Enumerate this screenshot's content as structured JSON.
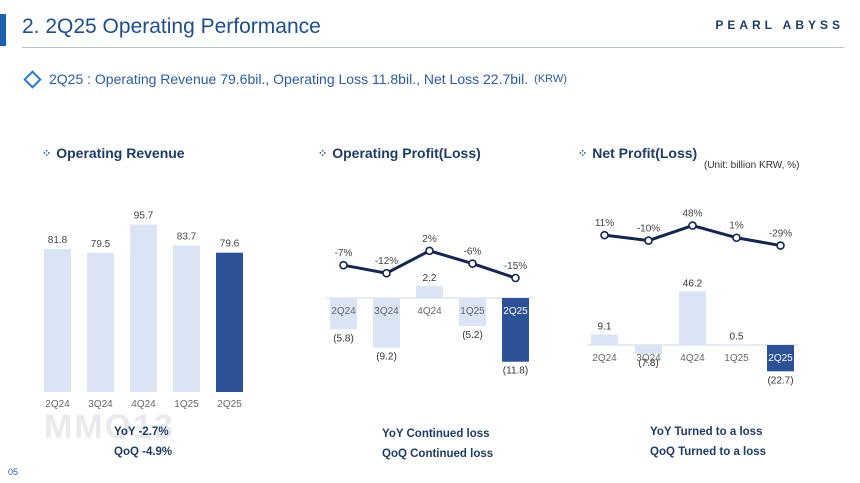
{
  "header": {
    "title": "2. 2Q25 Operating Performance",
    "brand": "PEARL ABYSS",
    "summary_main": "2Q25 : Operating Revenue 79.6bil., Operating Loss 11.8bil., Net Loss 22.7bil.",
    "summary_unit": "(KRW)"
  },
  "sections": {
    "revenue_title": "Operating Revenue",
    "op_title": "Operating Profit(Loss)",
    "net_title": "Net Profit(Loss)",
    "unit_note": "(Unit: billion KRW, %)"
  },
  "notes": {
    "revenue_yoy": "YoY  -2.7%",
    "revenue_qoq": "QoQ  -4.9%",
    "op_yoy": "YoY Continued loss",
    "op_qoq": "QoQ Continued loss",
    "net_yoy": "YoY Turned to a loss",
    "net_qoq": "QoQ Turned to a loss"
  },
  "page_number": "05",
  "watermark": "MMO13",
  "colors": {
    "bar_light": "#dbe4f4",
    "bar_highlight": "#2c5196",
    "line": "#13264d",
    "title_blue": "#1f4e8c"
  },
  "chart_data": [
    {
      "type": "bar",
      "title": "Operating Revenue",
      "categories": [
        "2Q24",
        "3Q24",
        "4Q24",
        "1Q25",
        "2Q25"
      ],
      "values": [
        81.8,
        79.5,
        95.7,
        83.7,
        79.6
      ],
      "labels": [
        "81.8",
        "79.5",
        "95.7",
        "83.7",
        "79.6"
      ],
      "highlight_index": 4
    },
    {
      "type": "bar",
      "title": "Operating Profit(Loss)",
      "categories": [
        "2Q24",
        "3Q24",
        "4Q24",
        "1Q25",
        "2Q25"
      ],
      "values": [
        -5.8,
        -9.2,
        2.2,
        -5.2,
        -11.8
      ],
      "labels": [
        "(5.8)",
        "(9.2)",
        "2.2",
        "(5.2)",
        "(11.8)"
      ],
      "margin_series": {
        "type": "line",
        "values": [
          -7,
          -12,
          2,
          -6,
          -15
        ],
        "labels": [
          "-7%",
          "-12%",
          "2%",
          "-6%",
          "-15%"
        ]
      },
      "highlight_index": 4
    },
    {
      "type": "bar",
      "title": "Net Profit(Loss)",
      "categories": [
        "2Q24",
        "3Q24",
        "4Q24",
        "1Q25",
        "2Q25"
      ],
      "values": [
        9.1,
        -7.8,
        46.2,
        0.5,
        -22.7
      ],
      "labels": [
        "9.1",
        "(7.8)",
        "46.2",
        "0.5",
        "(22.7)"
      ],
      "margin_series": {
        "type": "line",
        "values": [
          11,
          -10,
          48,
          1,
          -29
        ],
        "labels": [
          "11%",
          "-10%",
          "48%",
          "1%",
          "-29%"
        ]
      },
      "highlight_index": 4
    }
  ]
}
